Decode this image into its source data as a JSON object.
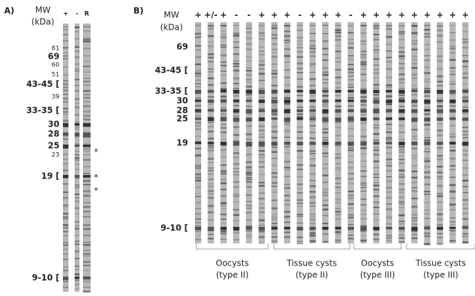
{
  "panel_a": {
    "label": "A)",
    "mw_title": "MW",
    "mw_unit": "(kDa)",
    "lanes": [
      "+",
      "-",
      "R"
    ],
    "markers": [
      "81",
      "69",
      "60",
      "51",
      "43-45 [",
      "39",
      "33-35 [",
      "30",
      "28",
      "25",
      "23",
      "19 [",
      "9-10 ["
    ],
    "asterisks": [
      "*",
      "*",
      "*"
    ]
  },
  "panel_b": {
    "label": "B)",
    "mw_title": "MW",
    "mw_unit": "(kDa)",
    "lanes": [
      "+",
      "+/-",
      "+",
      "-",
      "-",
      "+",
      "+",
      "+",
      "-",
      "+",
      "+",
      "+",
      "-",
      "+",
      "+",
      "+",
      "+",
      "+",
      "+",
      "+",
      "+",
      "+"
    ],
    "markers": [
      "69",
      "43-45 [",
      "33-35 [",
      "30",
      "28",
      "25",
      "19",
      "9-10 ["
    ],
    "groups": [
      {
        "line1": "Oocysts",
        "line2": "(type II)"
      },
      {
        "line1": "Tissue cysts",
        "line2": "(type II)"
      },
      {
        "line1": "Oocysts",
        "line2": "(type III)"
      },
      {
        "line1": "Tissue cysts",
        "line2": "(type III)"
      }
    ]
  }
}
